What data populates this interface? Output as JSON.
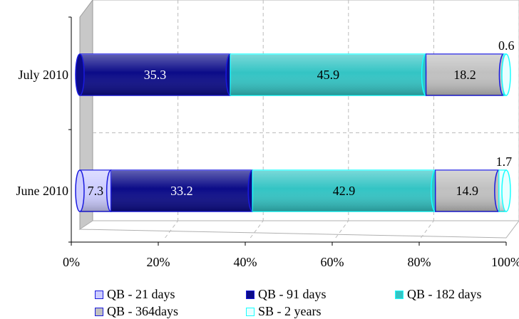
{
  "chart_data": {
    "type": "bar",
    "orientation": "horizontal",
    "stacked": "100%",
    "categories": [
      "July 2010",
      "June 2010"
    ],
    "x_ticks": [
      "0%",
      "20%",
      "40%",
      "60%",
      "80%",
      "100%"
    ],
    "xlim": [
      0,
      100
    ],
    "grid": true,
    "legend_position": "bottom",
    "series": [
      {
        "name": "QB - 21 days",
        "values": [
          0,
          7.3
        ],
        "labels": [
          "",
          "7.3"
        ],
        "color": "#ccccff",
        "edge": "#1a1adf"
      },
      {
        "name": "QB - 91 days",
        "values": [
          35.3,
          33.2
        ],
        "labels": [
          "35.3",
          "33.2"
        ],
        "color": "#0b0b88",
        "edge": "#1a1adf"
      },
      {
        "name": "QB - 182 days",
        "values": [
          45.9,
          42.9
        ],
        "labels": [
          "45.9",
          "42.9"
        ],
        "color": "#33c4c4",
        "edge": "#19ffff"
      },
      {
        "name": "QB - 364days",
        "values": [
          18.2,
          14.9
        ],
        "labels": [
          "18.2",
          "14.9"
        ],
        "color": "#c0c0c0",
        "edge": "#1a1adf"
      },
      {
        "name": "SB - 2 years",
        "values": [
          0.6,
          1.7
        ],
        "labels": [
          "0.6",
          "1.7"
        ],
        "color": "#e8ffff",
        "edge": "#19ffff"
      }
    ]
  }
}
